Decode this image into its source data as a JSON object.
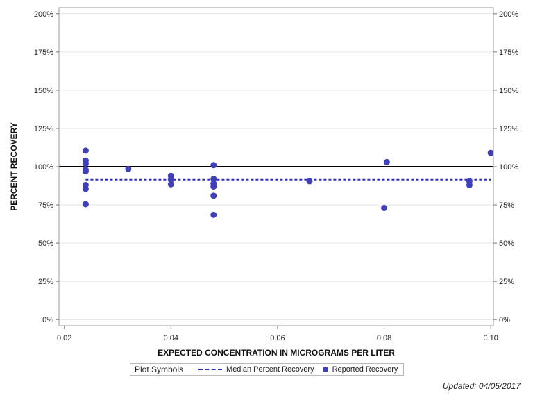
{
  "chart_data": {
    "type": "scatter",
    "title": "",
    "xlabel": "EXPECTED CONCENTRATION IN MICROGRAMS PER LITER",
    "ylabel": "PERCENT RECOVERY",
    "xlim": [
      0.019,
      0.1005
    ],
    "ylim": [
      -0.04,
      2.04
    ],
    "x_ticks": [
      0.02,
      0.04,
      0.06,
      0.08,
      0.1
    ],
    "x_tick_labels": [
      "0.02",
      "0.04",
      "0.06",
      "0.08",
      "0.10"
    ],
    "y_ticks": [
      0,
      0.25,
      0.5,
      0.75,
      1.0,
      1.25,
      1.5,
      1.75,
      2.0
    ],
    "y_tick_labels": [
      "0%",
      "25%",
      "50%",
      "75%",
      "100%",
      "125%",
      "150%",
      "175%",
      "200%"
    ],
    "y_right_tick_labels": [
      "0%",
      "25%",
      "50%",
      "75%",
      "100%",
      "125%",
      "150%",
      "175%",
      "200%"
    ],
    "grid": true,
    "reference_line": {
      "y": 1.0,
      "color": "#000000"
    },
    "series": [
      {
        "name": "Reported Recovery",
        "kind": "points",
        "color": "#3f3fb8",
        "x": [
          0.024,
          0.024,
          0.024,
          0.024,
          0.024,
          0.024,
          0.024,
          0.024,
          0.032,
          0.04,
          0.04,
          0.04,
          0.048,
          0.048,
          0.048,
          0.048,
          0.048,
          0.048,
          0.066,
          0.08,
          0.0805,
          0.096,
          0.096,
          0.1
        ],
        "y": [
          1.105,
          1.04,
          1.02,
          0.98,
          0.97,
          0.88,
          0.855,
          0.755,
          0.985,
          0.94,
          0.915,
          0.885,
          1.01,
          0.92,
          0.89,
          0.87,
          0.81,
          0.685,
          0.905,
          0.73,
          1.03,
          0.905,
          0.88,
          1.09
        ]
      },
      {
        "name": "Median Percent Recovery",
        "kind": "dashed-line",
        "color": "#2a2ab8",
        "x": [
          0.024,
          0.1
        ],
        "y": [
          0.915,
          0.915
        ]
      }
    ],
    "legend": {
      "title": "Plot Symbols",
      "position": "bottom-center",
      "items": [
        "Median Percent Recovery",
        "Reported Recovery"
      ]
    }
  },
  "footnote": "Updated: 04/05/2017"
}
